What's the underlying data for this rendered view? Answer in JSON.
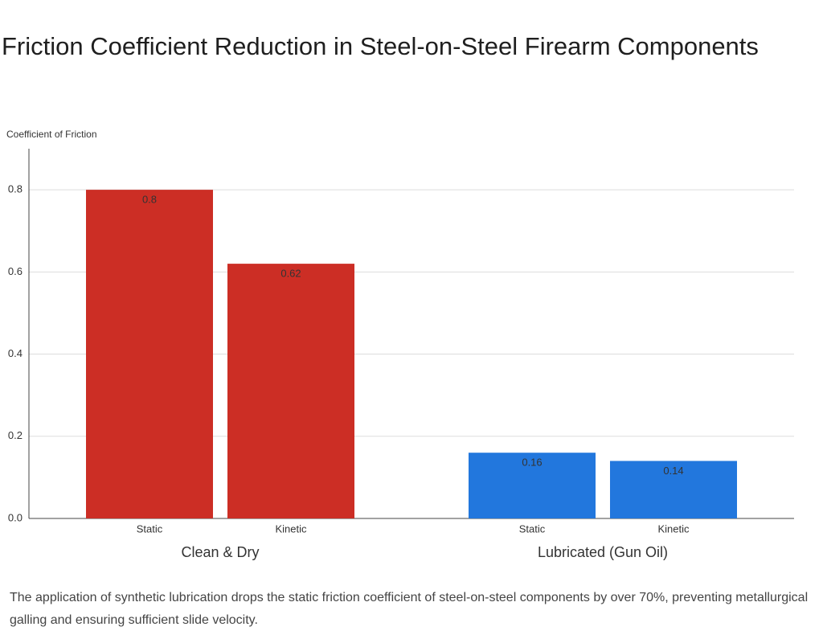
{
  "chart_data": {
    "type": "bar",
    "title": "Friction Coefficient Reduction in Steel-on-Steel Firearm Components",
    "ylabel": "Coefficient of Friction",
    "groups": [
      {
        "name": "Clean & Dry",
        "color": "#cc2e25",
        "categories": [
          "Static",
          "Kinetic"
        ],
        "values": [
          0.8,
          0.62
        ]
      },
      {
        "name": "Lubricated (Gun Oil)",
        "color": "#2277dd",
        "categories": [
          "Static",
          "Kinetic"
        ],
        "values": [
          0.16,
          0.14
        ]
      }
    ],
    "ylim": [
      0,
      0.9
    ],
    "yticks": [
      {
        "value": 0,
        "label": "0.0"
      },
      0.2,
      0.4,
      0.6,
      0.8
    ],
    "grid": true,
    "caption": "The application of synthetic lubrication drops the static friction coefficient of steel-on-steel components by over 70%, preventing metallurgical galling and ensuring sufficient slide velocity."
  }
}
